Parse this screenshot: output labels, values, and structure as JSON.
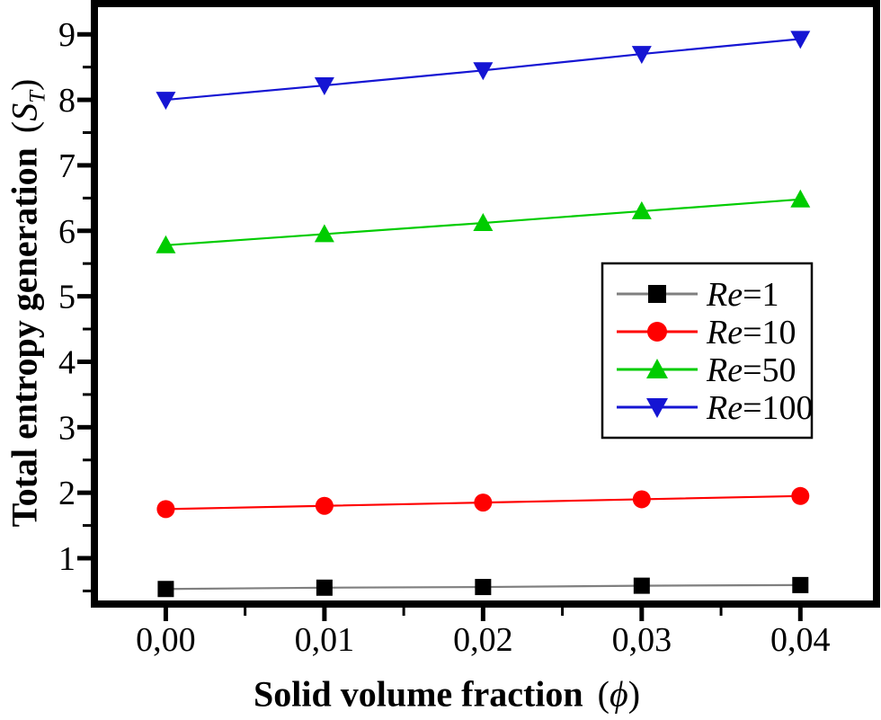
{
  "chart_data": {
    "type": "line",
    "title": "",
    "x": [
      0.0,
      0.01,
      0.02,
      0.03,
      0.04
    ],
    "x_tick_labels": [
      "0,00",
      "0,01",
      "0,02",
      "0,03",
      "0,04"
    ],
    "x_minor_ticks": [
      0.005,
      0.015,
      0.025,
      0.035
    ],
    "y_ticks": [
      1,
      2,
      3,
      4,
      5,
      6,
      7,
      8,
      9
    ],
    "y_minor_ticks": [
      0.5,
      1.5,
      2.5,
      3.5,
      4.5,
      5.5,
      6.5,
      7.5,
      8.5
    ],
    "xlim": [
      -0.0045,
      0.0448
    ],
    "ylim": [
      0.3,
      9.47
    ],
    "grid": false,
    "legend_position": "middle-right",
    "xlabel": "Solid volume fraction (ϕ)",
    "ylabel": "Total entropy generation (ST)",
    "series": [
      {
        "name": "Re=1",
        "legend_prefix": "Re",
        "legend_suffix": "=1",
        "marker": "square",
        "color": "#000000",
        "line_color": "#7f7f7f",
        "values": [
          0.53,
          0.55,
          0.56,
          0.58,
          0.59
        ]
      },
      {
        "name": "Re=10",
        "legend_prefix": "Re",
        "legend_suffix": "=10",
        "marker": "circle",
        "color": "#ff0000",
        "line_color": "#ff0000",
        "values": [
          1.75,
          1.8,
          1.85,
          1.9,
          1.95
        ]
      },
      {
        "name": "Re=50",
        "legend_prefix": "Re",
        "legend_suffix": "=50",
        "marker": "triangle-up",
        "color": "#00cc00",
        "line_color": "#00cc00",
        "values": [
          5.78,
          5.95,
          6.12,
          6.3,
          6.48
        ]
      },
      {
        "name": "Re=100",
        "legend_prefix": "Re",
        "legend_suffix": "=100",
        "marker": "triangle-down",
        "color": "#1515d3",
        "line_color": "#1515d3",
        "values": [
          8.0,
          8.22,
          8.45,
          8.7,
          8.93
        ]
      }
    ]
  },
  "axes": {
    "x_label": {
      "text": "Solid volume fraction",
      "paren_open": "(",
      "symbol": "ϕ",
      "paren_close": ")"
    },
    "y_label": {
      "text": "Total entropy generation",
      "paren_open": "(",
      "symbol": "S",
      "subscript": "T",
      "paren_close": ")"
    }
  },
  "colors": {
    "frame": "#000000",
    "background": "#ffffff",
    "legend_border": "#000000",
    "legend_fill": "#ffffff"
  }
}
